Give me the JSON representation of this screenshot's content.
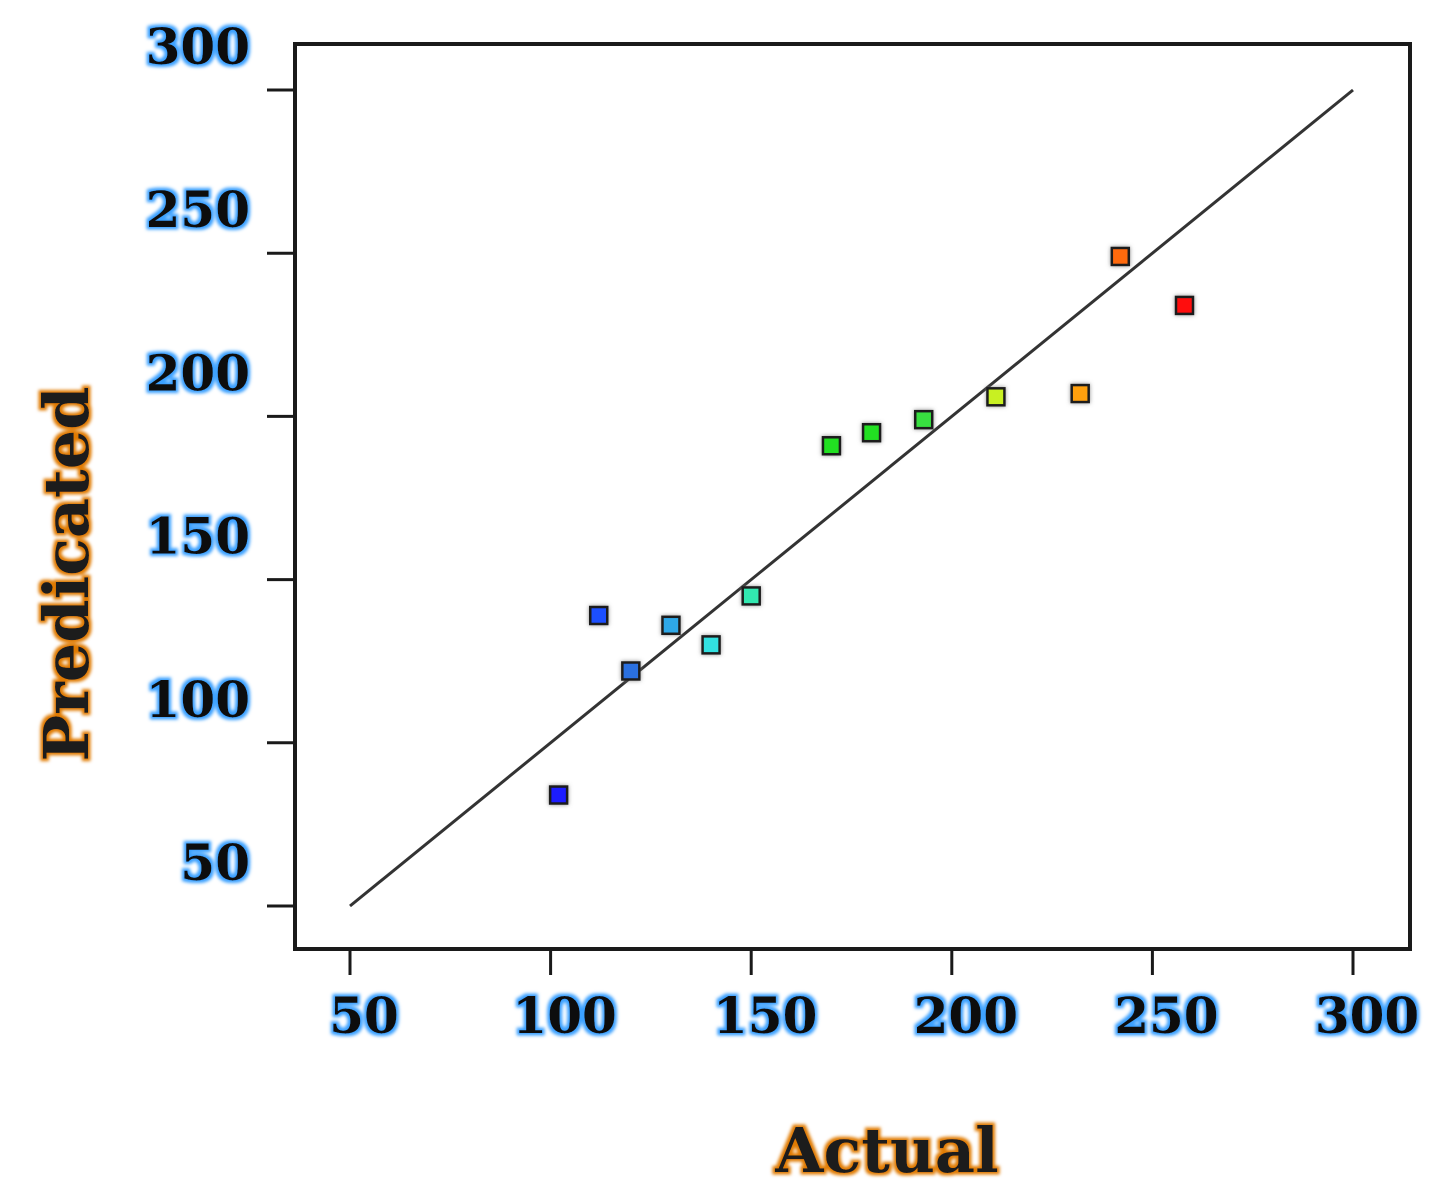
{
  "chart_data": {
    "type": "scatter",
    "title": "",
    "xlabel": "Actual",
    "ylabel": "Predicated",
    "xlim": [
      50,
      300
    ],
    "ylim": [
      50,
      300
    ],
    "x_ticks": [
      "50",
      "100",
      "150",
      "200",
      "250",
      "300"
    ],
    "y_ticks": [
      "50",
      "100",
      "150",
      "200",
      "250",
      "300"
    ],
    "grid": false,
    "reference_line": {
      "from": [
        50,
        50
      ],
      "to": [
        300,
        300
      ],
      "color": "#333333"
    },
    "tick_label_glow": "#3aa0ff",
    "axis_title_glow": "#e07a00",
    "points": [
      {
        "x": 102,
        "y": 84,
        "color": "#1a1aff"
      },
      {
        "x": 112,
        "y": 139,
        "color": "#1f4fff"
      },
      {
        "x": 120,
        "y": 122,
        "color": "#2a6fe0"
      },
      {
        "x": 130,
        "y": 136,
        "color": "#2fa8e8"
      },
      {
        "x": 140,
        "y": 130,
        "color": "#30e0e0"
      },
      {
        "x": 150,
        "y": 145,
        "color": "#30e8b0"
      },
      {
        "x": 170,
        "y": 191,
        "color": "#22e022"
      },
      {
        "x": 180,
        "y": 195,
        "color": "#22e022"
      },
      {
        "x": 193,
        "y": 199,
        "color": "#38e040"
      },
      {
        "x": 211,
        "y": 206,
        "color": "#c8f020"
      },
      {
        "x": 232,
        "y": 207,
        "color": "#ffa010"
      },
      {
        "x": 242,
        "y": 249,
        "color": "#ff6a10"
      },
      {
        "x": 258,
        "y": 234,
        "color": "#ff1010"
      }
    ]
  }
}
